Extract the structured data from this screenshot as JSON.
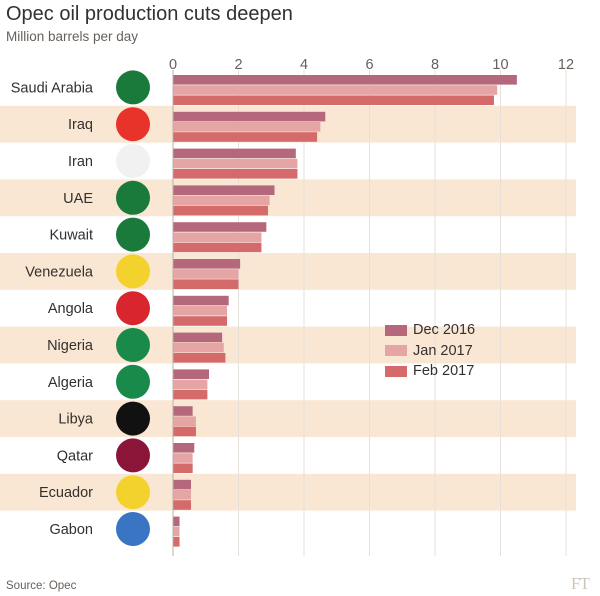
{
  "chart_data": {
    "type": "bar",
    "orientation": "horizontal",
    "title": "Opec oil production cuts deepen",
    "subtitle": "Million barrels per day",
    "source": "Source: Opec",
    "brand": "FT",
    "xlim": [
      0,
      12
    ],
    "xticks": [
      "0",
      "2",
      "4",
      "6",
      "8",
      "10",
      "12"
    ],
    "grid": true,
    "legend_position": "right",
    "categories": [
      "Saudi Arabia",
      "Iraq",
      "Iran",
      "UAE",
      "Kuwait",
      "Venezuela",
      "Angola",
      "Nigeria",
      "Algeria",
      "Libya",
      "Qatar",
      "Ecuador",
      "Gabon"
    ],
    "series": [
      {
        "name": "Dec 2016",
        "color": "#b5687b",
        "values": [
          10.5,
          4.65,
          3.75,
          3.1,
          2.85,
          2.05,
          1.7,
          1.5,
          1.1,
          0.6,
          0.65,
          0.55,
          0.2
        ]
      },
      {
        "name": "Jan 2017",
        "color": "#e6a5a5",
        "values": [
          9.9,
          4.5,
          3.8,
          2.95,
          2.7,
          2.0,
          1.65,
          1.55,
          1.05,
          0.7,
          0.6,
          0.55,
          0.2
        ]
      },
      {
        "name": "Feb 2017",
        "color": "#d46a6a",
        "values": [
          9.8,
          4.4,
          3.8,
          2.9,
          2.7,
          2.0,
          1.65,
          1.6,
          1.05,
          0.7,
          0.6,
          0.55,
          0.2
        ]
      }
    ],
    "band_color": "#f9e7d3",
    "grid_color": "#e5e0da"
  }
}
